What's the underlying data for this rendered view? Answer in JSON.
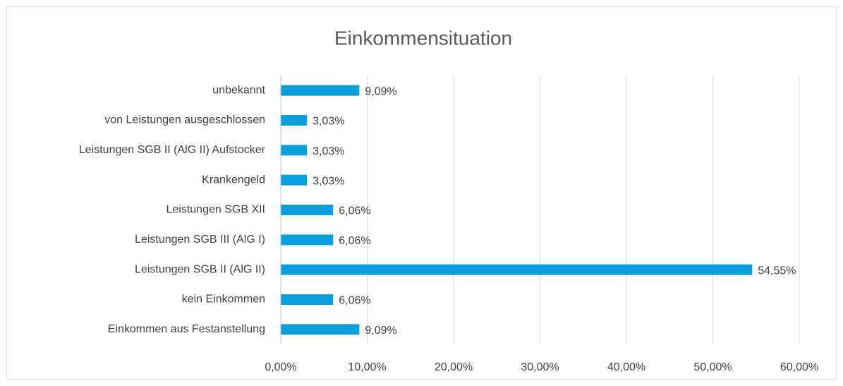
{
  "chart_data": {
    "type": "bar",
    "orientation": "horizontal",
    "title": "Einkommensituation",
    "categories": [
      "unbekannt",
      "von Leistungen ausgeschlossen",
      "Leistungen SGB II (AlG II) Aufstocker",
      "Krankengeld",
      "Leistungen SGB XII",
      "Leistungen SGB III (AlG I)",
      "Leistungen SGB II (AlG II)",
      "kein Einkommen",
      "Einkommen aus Festanstellung"
    ],
    "values": [
      9.09,
      3.03,
      3.03,
      3.03,
      6.06,
      6.06,
      54.55,
      6.06,
      9.09
    ],
    "value_labels": [
      "9,09%",
      "3,03%",
      "3,03%",
      "3,03%",
      "6,06%",
      "6,06%",
      "54,55%",
      "6,06%",
      "9,09%"
    ],
    "color": "#0a9fdc",
    "xlim": [
      0,
      60
    ],
    "xticks": [
      {
        "value": 0,
        "label": "0,00%"
      },
      {
        "value": 10,
        "label": "10,00%"
      },
      {
        "value": 20,
        "label": "20,00%"
      },
      {
        "value": 30,
        "label": "30,00%"
      },
      {
        "value": 40,
        "label": "40,00%"
      },
      {
        "value": 50,
        "label": "50,00%"
      },
      {
        "value": 60,
        "label": "60,00%"
      }
    ],
    "grid": true
  }
}
